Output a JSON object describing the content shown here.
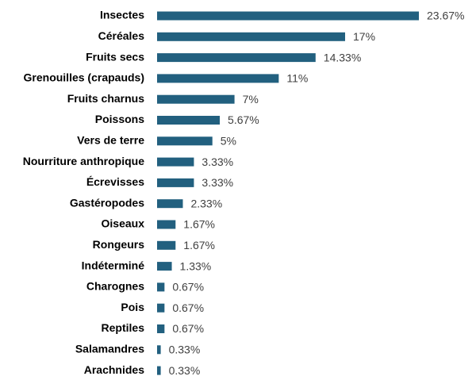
{
  "chart_data": {
    "type": "bar",
    "orientation": "horizontal",
    "color": "#22607f",
    "categories": [
      "Insectes",
      "Céréales",
      "Fruits secs",
      "Grenouilles (crapauds)",
      "Fruits charnus",
      "Poissons",
      "Vers de terre",
      "Nourriture anthropique",
      "Écrevisses",
      "Gastéropodes",
      "Oiseaux",
      "Rongeurs",
      "Indéterminé",
      "Charognes",
      "Pois",
      "Reptiles",
      "Salamandres",
      "Arachnides"
    ],
    "values": [
      23.67,
      17,
      14.33,
      11,
      7,
      5.67,
      5,
      3.33,
      3.33,
      2.33,
      1.67,
      1.67,
      1.33,
      0.67,
      0.67,
      0.67,
      0.33,
      0.33
    ],
    "value_labels": [
      "23.67%",
      "17%",
      "14.33%",
      "11%",
      "7%",
      "5.67%",
      "5%",
      "3.33%",
      "3.33%",
      "2.33%",
      "1.67%",
      "1.67%",
      "1.33%",
      "0.67%",
      "0.67%",
      "0.67%",
      "0.33%",
      "0.33%"
    ]
  }
}
